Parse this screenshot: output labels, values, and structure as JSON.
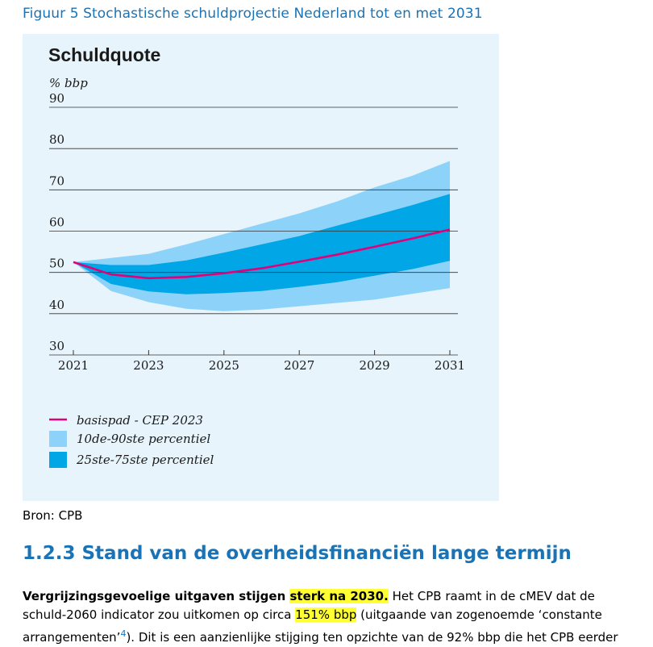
{
  "caption": "Figuur 5 Stochastische schuldprojectie Nederland tot en met 2031",
  "source": "Bron: CPB",
  "section": {
    "heading": "1.2.3 Stand van de overheidsfinanciën lange termijn"
  },
  "paragraph": {
    "lead_a": "Vergrijzingsgevoelige uitgaven stijgen ",
    "lead_b": "sterk na 2030.",
    "line1_rest": " Het CPB raamt in de cMEV dat de",
    "line2_a": "schuld-2060 indicator zou uitkomen op circa ",
    "line2_hl": "151% bbp",
    "line2_b": " (uitgaande van zogenoemde ‘constante",
    "line3_a": "arrangementen’",
    "footnote": "4",
    "line3_b": "). Dit is een aanzienlijke stijging ten opzichte van de 92% bbp die het CPB eerder"
  },
  "colors": {
    "panel": "#e7f4fb",
    "band_outer": "#8dd3f9",
    "band_inner": "#00a6e6",
    "baseline": "#e2007a",
    "caption_blue": "#1a73b5",
    "highlight": "#ffff33"
  },
  "chart_data": {
    "type": "area",
    "title": "Schuldquote",
    "ylabel": "% bbp",
    "x": [
      2021,
      2022,
      2023,
      2024,
      2025,
      2026,
      2027,
      2028,
      2029,
      2030,
      2031
    ],
    "xticks": [
      2021,
      2023,
      2025,
      2027,
      2029,
      2031
    ],
    "yticks": [
      30,
      40,
      50,
      60,
      70,
      80,
      90
    ],
    "ylim": [
      30,
      90
    ],
    "grid": true,
    "legend_position": "bottom-left",
    "series": [
      {
        "name": "basispad - CEP 2023",
        "kind": "line",
        "values": [
          52.5,
          49.5,
          48.6,
          48.9,
          49.8,
          51.0,
          52.6,
          54.3,
          56.2,
          58.2,
          60.4
        ]
      },
      {
        "name": "10de-90ste percentiel",
        "kind": "band",
        "lower": [
          52.5,
          45.5,
          42.8,
          41.2,
          40.6,
          41.0,
          41.8,
          42.6,
          43.4,
          44.8,
          46.2
        ],
        "upper": [
          52.5,
          53.5,
          54.5,
          56.8,
          59.3,
          61.8,
          64.3,
          67.2,
          70.6,
          73.4,
          77.0
        ]
      },
      {
        "name": "25ste-75ste percentiel",
        "kind": "band",
        "lower": [
          52.5,
          47.2,
          45.4,
          44.7,
          45.0,
          45.5,
          46.5,
          47.6,
          49.2,
          50.8,
          52.8
        ],
        "upper": [
          52.5,
          51.8,
          51.8,
          52.9,
          54.8,
          56.8,
          58.8,
          61.3,
          63.8,
          66.3,
          69.0
        ]
      }
    ]
  }
}
